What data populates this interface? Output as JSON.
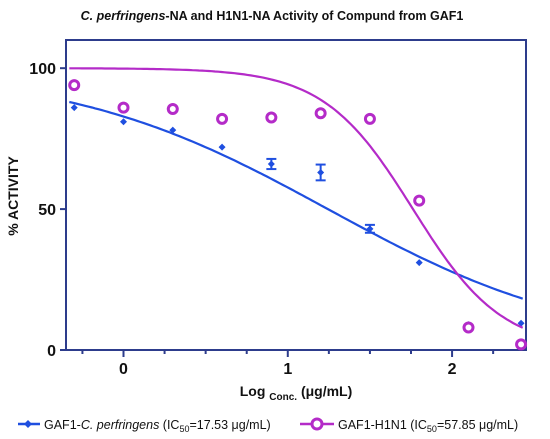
{
  "chart_data": {
    "type": "scatter",
    "title_italic": "C. perfringens",
    "title_rest": "-NA and H1N1-NA Activity of Compund from GAF1",
    "ylabel": "% ACTIVITY",
    "xlabel": {
      "main": "Log",
      "sub": "Conc.",
      "unit": "(μg/mL)"
    },
    "xlim": [
      -0.35,
      2.45
    ],
    "ylim": [
      0,
      110
    ],
    "x_ticks": [
      0,
      1,
      2
    ],
    "x_tick_labels": [
      "0",
      "1",
      "2"
    ],
    "y_ticks": [
      0,
      50,
      100
    ],
    "y_tick_labels": [
      "0",
      "50",
      "100"
    ],
    "grid": false,
    "legend_position": "bottom",
    "colors": {
      "series1": "#1f4fe0",
      "series2": "#b42bc8",
      "frame": "#2d3c8c"
    },
    "series": [
      {
        "legend_prefix": "GAF1-",
        "legend_italic": "C. perfringens",
        "legend_ic_open": " (IC",
        "legend_ic_sub": "50",
        "legend_ic_close": "=17.53 μg/mL)",
        "marker": "diamond",
        "points": [
          {
            "x": -0.3,
            "y": 86
          },
          {
            "x": 0.0,
            "y": 81
          },
          {
            "x": 0.3,
            "y": 78
          },
          {
            "x": 0.6,
            "y": 72
          },
          {
            "x": 0.9,
            "y": 66,
            "err": 1.8
          },
          {
            "x": 1.2,
            "y": 63,
            "err": 2.8
          },
          {
            "x": 1.5,
            "y": 43,
            "err": 1.4
          },
          {
            "x": 1.8,
            "y": 31
          },
          {
            "x": 2.1,
            "y": 9
          },
          {
            "x": 2.42,
            "y": 9.5
          }
        ],
        "fit": {
          "top": 100,
          "bottom": 0,
          "logIC50": 1.244,
          "hill": 0.55
        }
      },
      {
        "legend_prefix": "GAF1-H1N1",
        "legend_italic": "",
        "legend_ic_open": " (IC",
        "legend_ic_sub": "50",
        "legend_ic_close": "=57.85 μg/mL)",
        "marker": "circle",
        "points": [
          {
            "x": -0.3,
            "y": 94
          },
          {
            "x": 0.0,
            "y": 86
          },
          {
            "x": 0.3,
            "y": 85.5
          },
          {
            "x": 0.6,
            "y": 82
          },
          {
            "x": 0.9,
            "y": 82.5
          },
          {
            "x": 1.2,
            "y": 84
          },
          {
            "x": 1.5,
            "y": 82
          },
          {
            "x": 1.8,
            "y": 53
          },
          {
            "x": 2.1,
            "y": 8
          },
          {
            "x": 2.42,
            "y": 2
          }
        ],
        "fit": {
          "top": 100,
          "bottom": 0,
          "logIC50": 1.762,
          "hill": 1.6
        }
      }
    ]
  }
}
